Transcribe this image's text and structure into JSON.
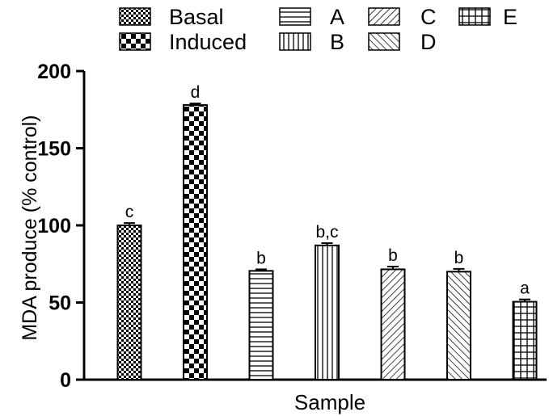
{
  "chart_data": {
    "type": "bar",
    "xlabel": "Sample",
    "ylabel": "MDA produce (% control)",
    "ylim": [
      0,
      200
    ],
    "yticks": [
      0,
      50,
      100,
      150,
      200
    ],
    "grid": false,
    "legend_position": "top",
    "series": [
      {
        "name": "Basal",
        "value": 100,
        "error": 1.5,
        "sig": "c",
        "pattern": "fine-checker"
      },
      {
        "name": "Induced",
        "value": 178,
        "error": 1.0,
        "sig": "d",
        "pattern": "checker"
      },
      {
        "name": "A",
        "value": 70.5,
        "error": 1.0,
        "sig": "b",
        "pattern": "horizontal-lines"
      },
      {
        "name": "B",
        "value": 87,
        "error": 1.5,
        "sig": "b,c",
        "pattern": "vertical-lines"
      },
      {
        "name": "C",
        "value": 71.5,
        "error": 1.8,
        "sig": "b",
        "pattern": "diagonal-up"
      },
      {
        "name": "D",
        "value": 70,
        "error": 1.8,
        "sig": "b",
        "pattern": "diagonal-down"
      },
      {
        "name": "E",
        "value": 50.5,
        "error": 1.5,
        "sig": "a",
        "pattern": "grid"
      }
    ]
  }
}
